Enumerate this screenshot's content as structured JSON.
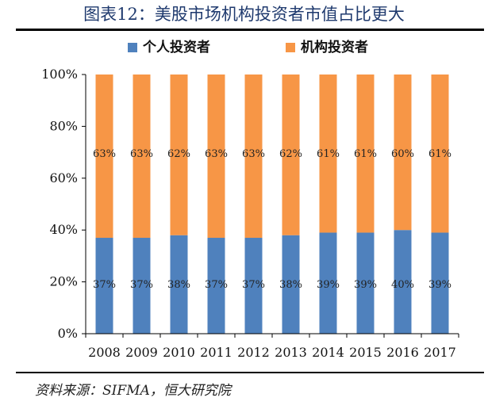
{
  "title": "图表12：美股市场机构投资者市值占比更大",
  "source": "资料来源：SIFMA，恒大研究院",
  "colors": {
    "individual": "#4f81bd",
    "institutional": "#f79646"
  },
  "chart_data": {
    "type": "bar",
    "stacked": true,
    "percent_stacked": true,
    "categories": [
      "2008",
      "2009",
      "2010",
      "2011",
      "2012",
      "2013",
      "2014",
      "2015",
      "2016",
      "2017"
    ],
    "series": [
      {
        "name": "个人投资者",
        "values": [
          37,
          37,
          38,
          37,
          37,
          38,
          39,
          39,
          40,
          39
        ]
      },
      {
        "name": "机构投资者",
        "values": [
          63,
          63,
          62,
          63,
          63,
          62,
          61,
          61,
          60,
          61
        ]
      }
    ],
    "data_labels": {
      "individual": [
        "37%",
        "37%",
        "38%",
        "37%",
        "37%",
        "38%",
        "39%",
        "39%",
        "40%",
        "39%"
      ],
      "institutional": [
        "63%",
        "63%",
        "62%",
        "63%",
        "63%",
        "62%",
        "61%",
        "61%",
        "60%",
        "61%"
      ]
    },
    "y_ticks": [
      "0%",
      "20%",
      "40%",
      "60%",
      "80%",
      "100%"
    ],
    "ylim": [
      0,
      100
    ],
    "legend_position": "top"
  }
}
